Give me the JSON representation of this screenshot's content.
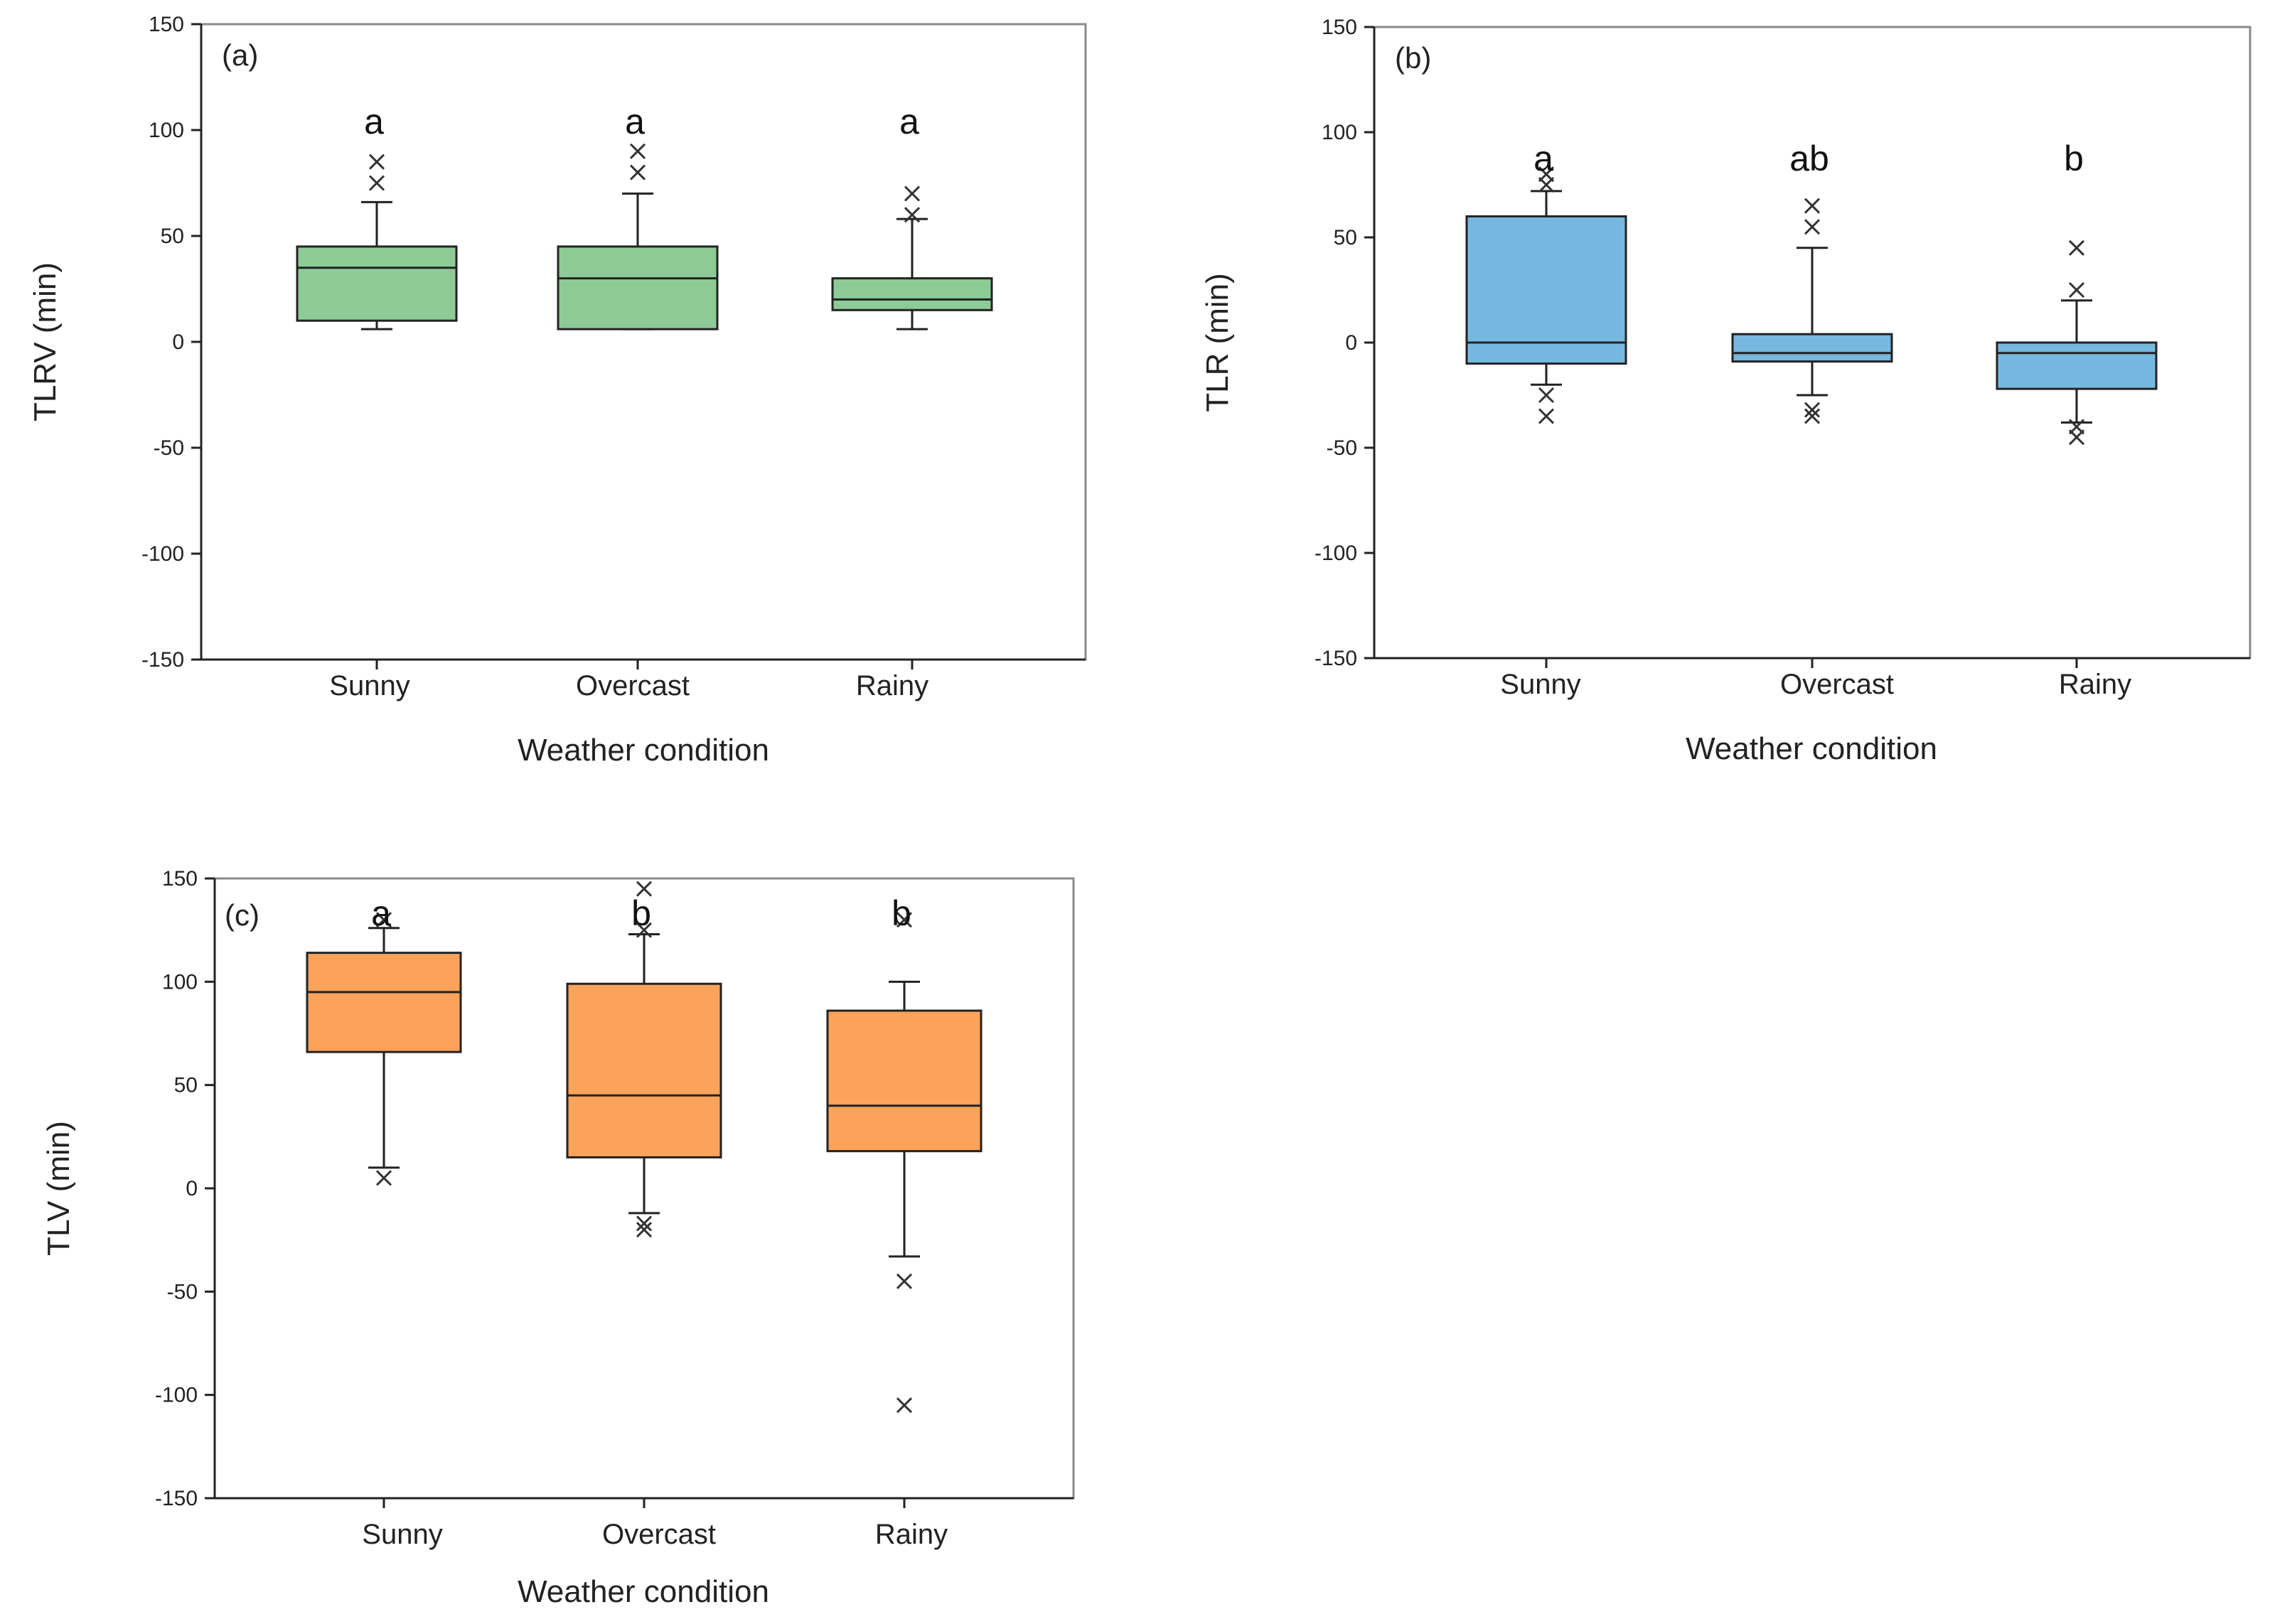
{
  "chart_data": [
    {
      "type": "box",
      "panel_label": "(a)",
      "ylabel": "TLRV (min)",
      "xlabel": "Weather condition",
      "ylim": [
        -150,
        150
      ],
      "yticks": [
        150,
        100,
        50,
        0,
        -50,
        -100,
        -150
      ],
      "categories": [
        "Sunny",
        "Overcast",
        "Rainy"
      ],
      "fill_color": "#8dcb96",
      "boxes": [
        {
          "category": "Sunny",
          "whisker_low": 6,
          "q1": 10,
          "median": 35,
          "q3": 45,
          "whisker_high": 66,
          "outliers": [
            75,
            85
          ],
          "letter": "a"
        },
        {
          "category": "Overcast",
          "whisker_low": 6,
          "q1": 6,
          "median": 30,
          "q3": 45,
          "whisker_high": 70,
          "outliers": [
            80,
            90
          ],
          "letter": "a"
        },
        {
          "category": "Rainy",
          "whisker_low": 6,
          "q1": 15,
          "median": 20,
          "q3": 30,
          "whisker_high": 58,
          "outliers": [
            60,
            70
          ],
          "letter": "a"
        }
      ]
    },
    {
      "type": "box",
      "panel_label": "(b)",
      "ylabel": "TLR (min)",
      "xlabel": "Weather condition",
      "ylim": [
        -150,
        150
      ],
      "yticks": [
        150,
        100,
        50,
        0,
        -50,
        -100,
        -150
      ],
      "categories": [
        "Sunny",
        "Overcast",
        "Rainy"
      ],
      "fill_color": "#77b8e0",
      "boxes": [
        {
          "category": "Sunny",
          "whisker_low": -20,
          "q1": -10,
          "median": 0,
          "q3": 60,
          "whisker_high": 72,
          "outliers": [
            75,
            80,
            -25,
            -35
          ],
          "letter": "a"
        },
        {
          "category": "Overcast",
          "whisker_low": -25,
          "q1": -9,
          "median": -5,
          "q3": 4,
          "whisker_high": 45,
          "outliers": [
            55,
            65,
            -32,
            -35
          ],
          "letter": "ab"
        },
        {
          "category": "Rainy",
          "whisker_low": -38,
          "q1": -22,
          "median": -5,
          "q3": 0,
          "whisker_high": 20,
          "outliers": [
            25,
            45,
            -40,
            -45
          ],
          "letter": "b"
        }
      ]
    },
    {
      "type": "box",
      "panel_label": "(c)",
      "ylabel": "TLV (min)",
      "xlabel": "Weather condition",
      "ylim": [
        -150,
        150
      ],
      "yticks": [
        150,
        100,
        50,
        0,
        -50,
        -100,
        -150
      ],
      "categories": [
        "Sunny",
        "Overcast",
        "Rainy"
      ],
      "fill_color": "#fba35a",
      "boxes": [
        {
          "category": "Sunny",
          "whisker_low": 10,
          "q1": 66,
          "median": 95,
          "q3": 114,
          "whisker_high": 126,
          "outliers": [
            130,
            5
          ],
          "letter": "a"
        },
        {
          "category": "Overcast",
          "whisker_low": -12,
          "q1": 15,
          "median": 45,
          "q3": 99,
          "whisker_high": 123,
          "outliers": [
            125,
            145,
            -17,
            -20
          ],
          "letter": "b"
        },
        {
          "category": "Rainy",
          "whisker_low": -33,
          "q1": 18,
          "median": 40,
          "q3": 86,
          "whisker_high": 100,
          "outliers": [
            130,
            -45,
            -105
          ],
          "letter": "b"
        }
      ]
    }
  ]
}
